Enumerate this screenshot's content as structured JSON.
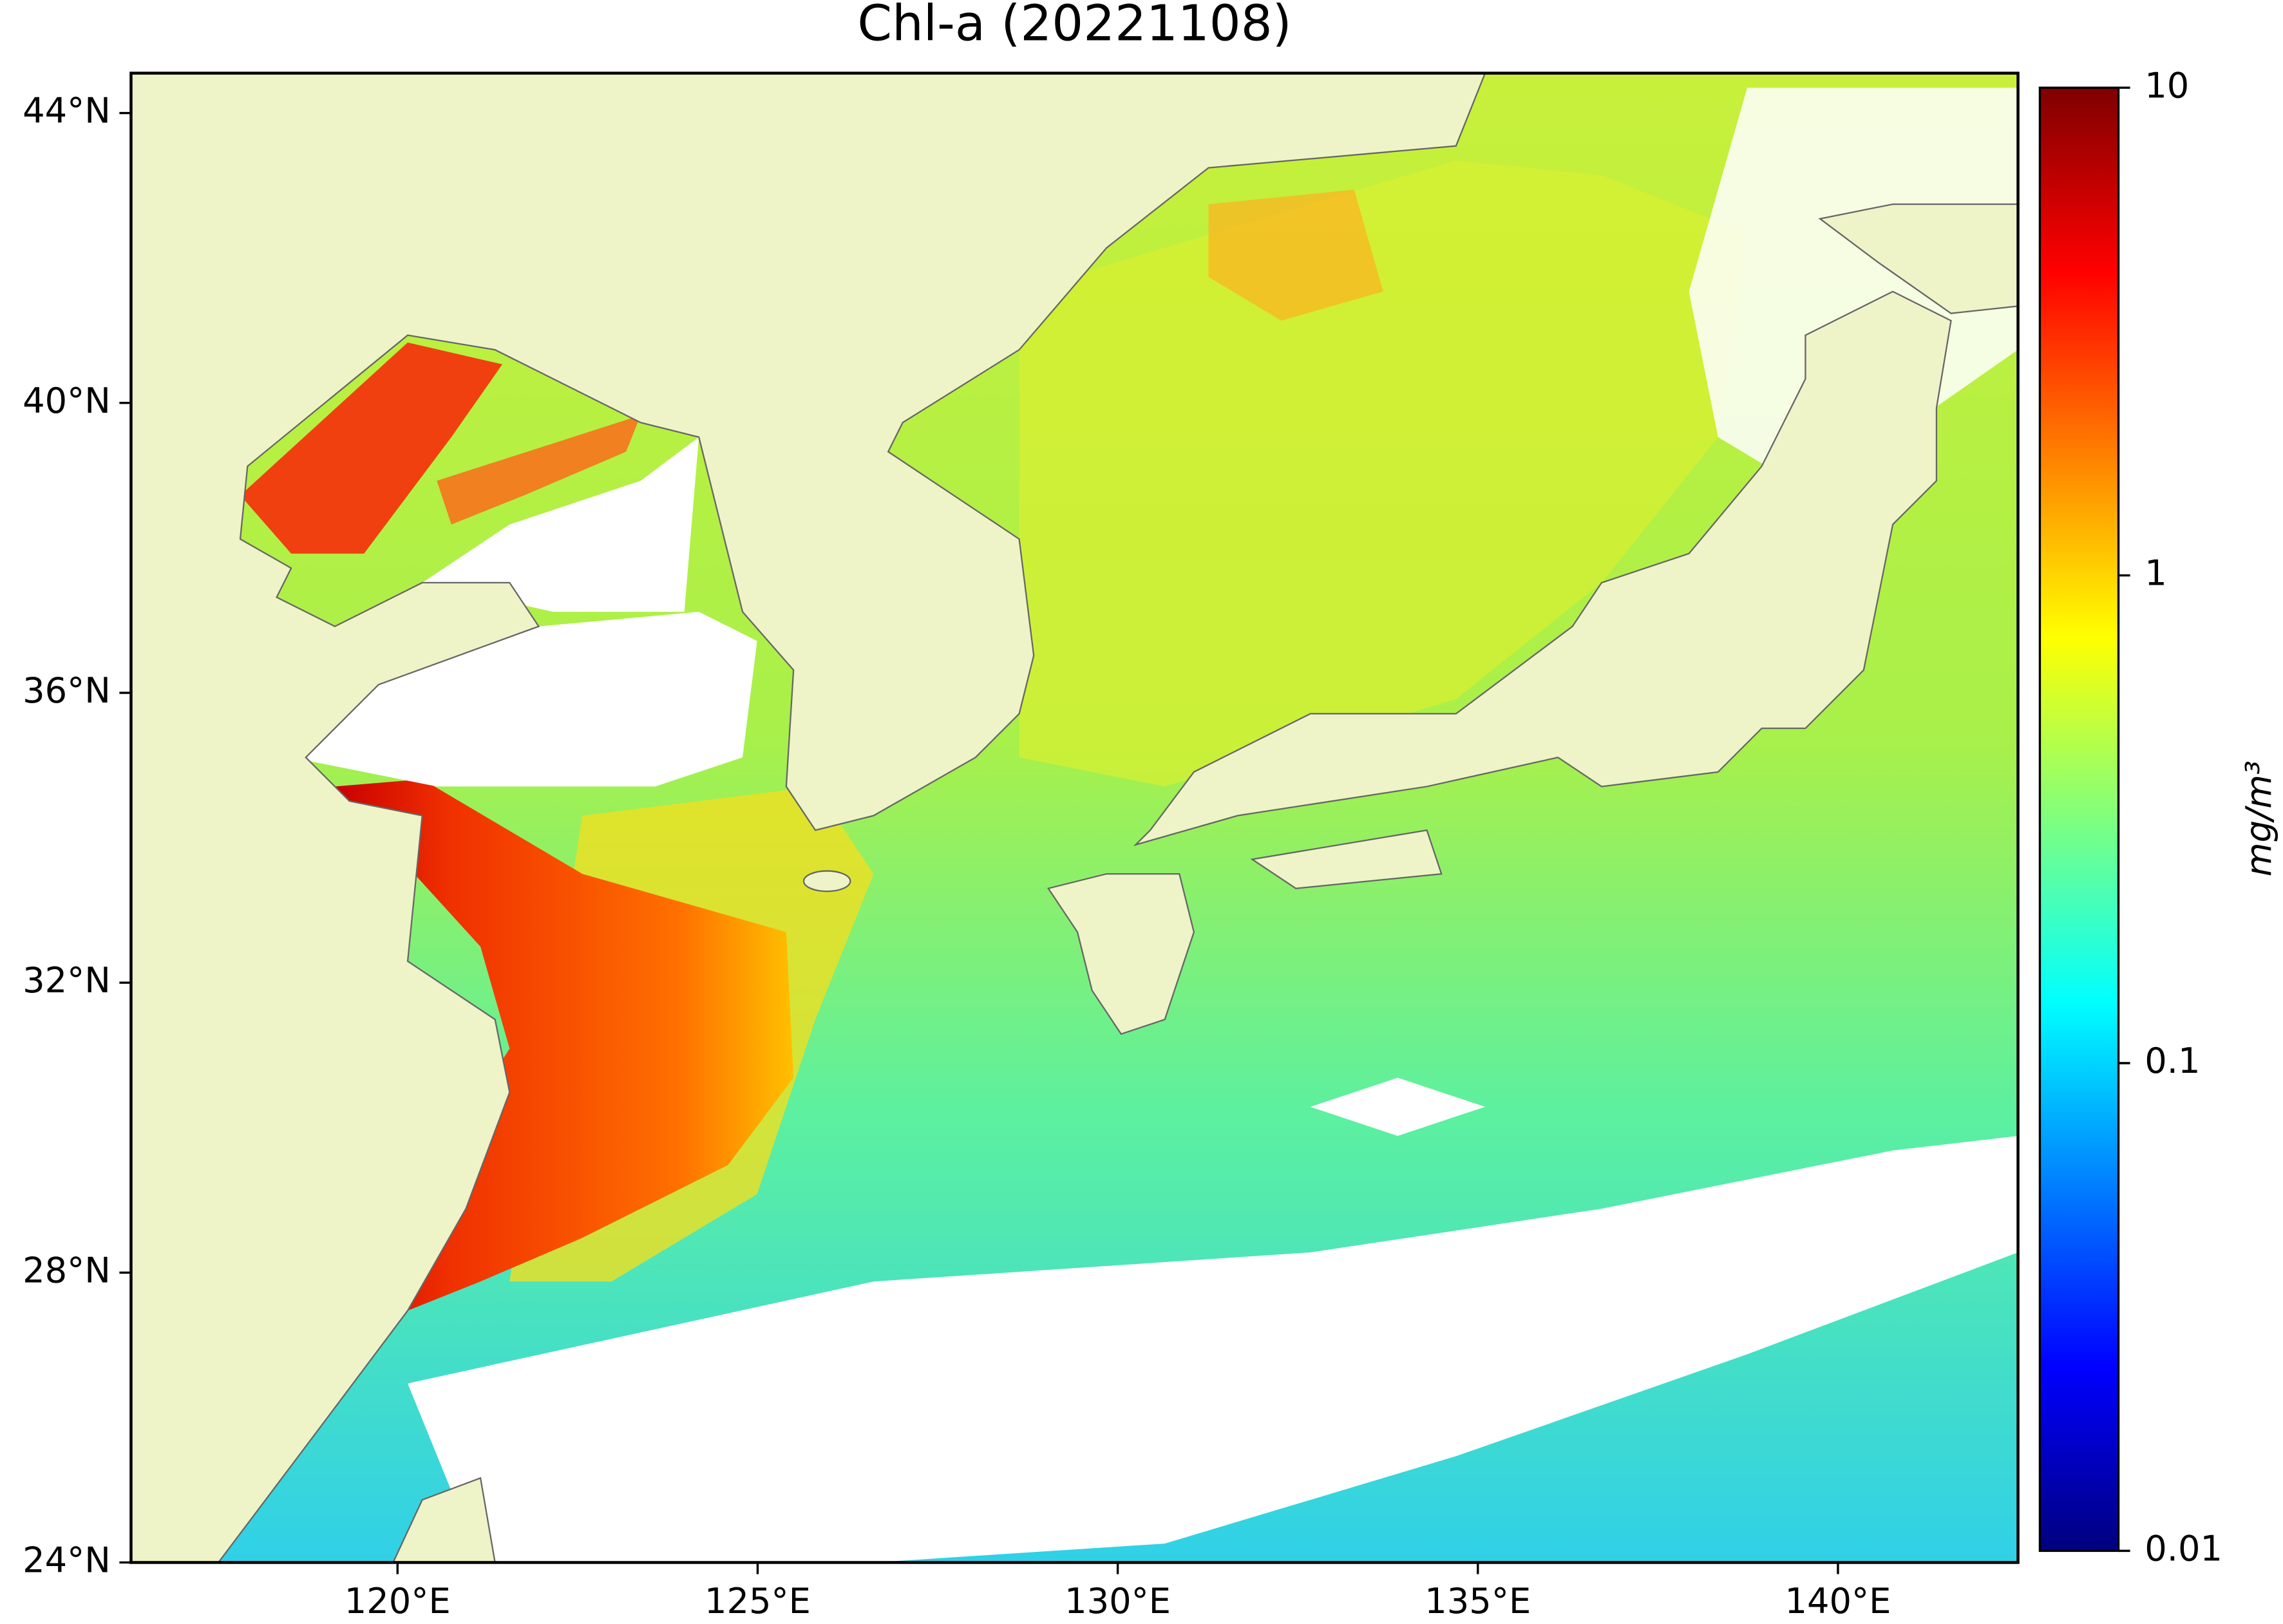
{
  "chart_data": {
    "type": "map",
    "title": "Chl-a (20221108)",
    "xlim": [
      116.3,
      142.5
    ],
    "ylim": [
      24,
      44.55
    ],
    "xticks": [
      {
        "value": 120,
        "label": "120°E"
      },
      {
        "value": 125,
        "label": "125°E"
      },
      {
        "value": 130,
        "label": "130°E"
      },
      {
        "value": 135,
        "label": "135°E"
      },
      {
        "value": 140,
        "label": "140°E"
      }
    ],
    "yticks": [
      {
        "value": 24,
        "label": "24°N"
      },
      {
        "value": 28,
        "label": "28°N"
      },
      {
        "value": 32,
        "label": "32°N"
      },
      {
        "value": 36,
        "label": "36°N"
      },
      {
        "value": 40,
        "label": "40°N"
      },
      {
        "value": 44,
        "label": "44°N"
      }
    ],
    "colorbar": {
      "label": "mg/m³",
      "scale": "log",
      "colormap": "jet",
      "lim": [
        0.01,
        10
      ],
      "ticks": [
        0.01,
        0.1,
        1,
        10
      ]
    }
  }
}
